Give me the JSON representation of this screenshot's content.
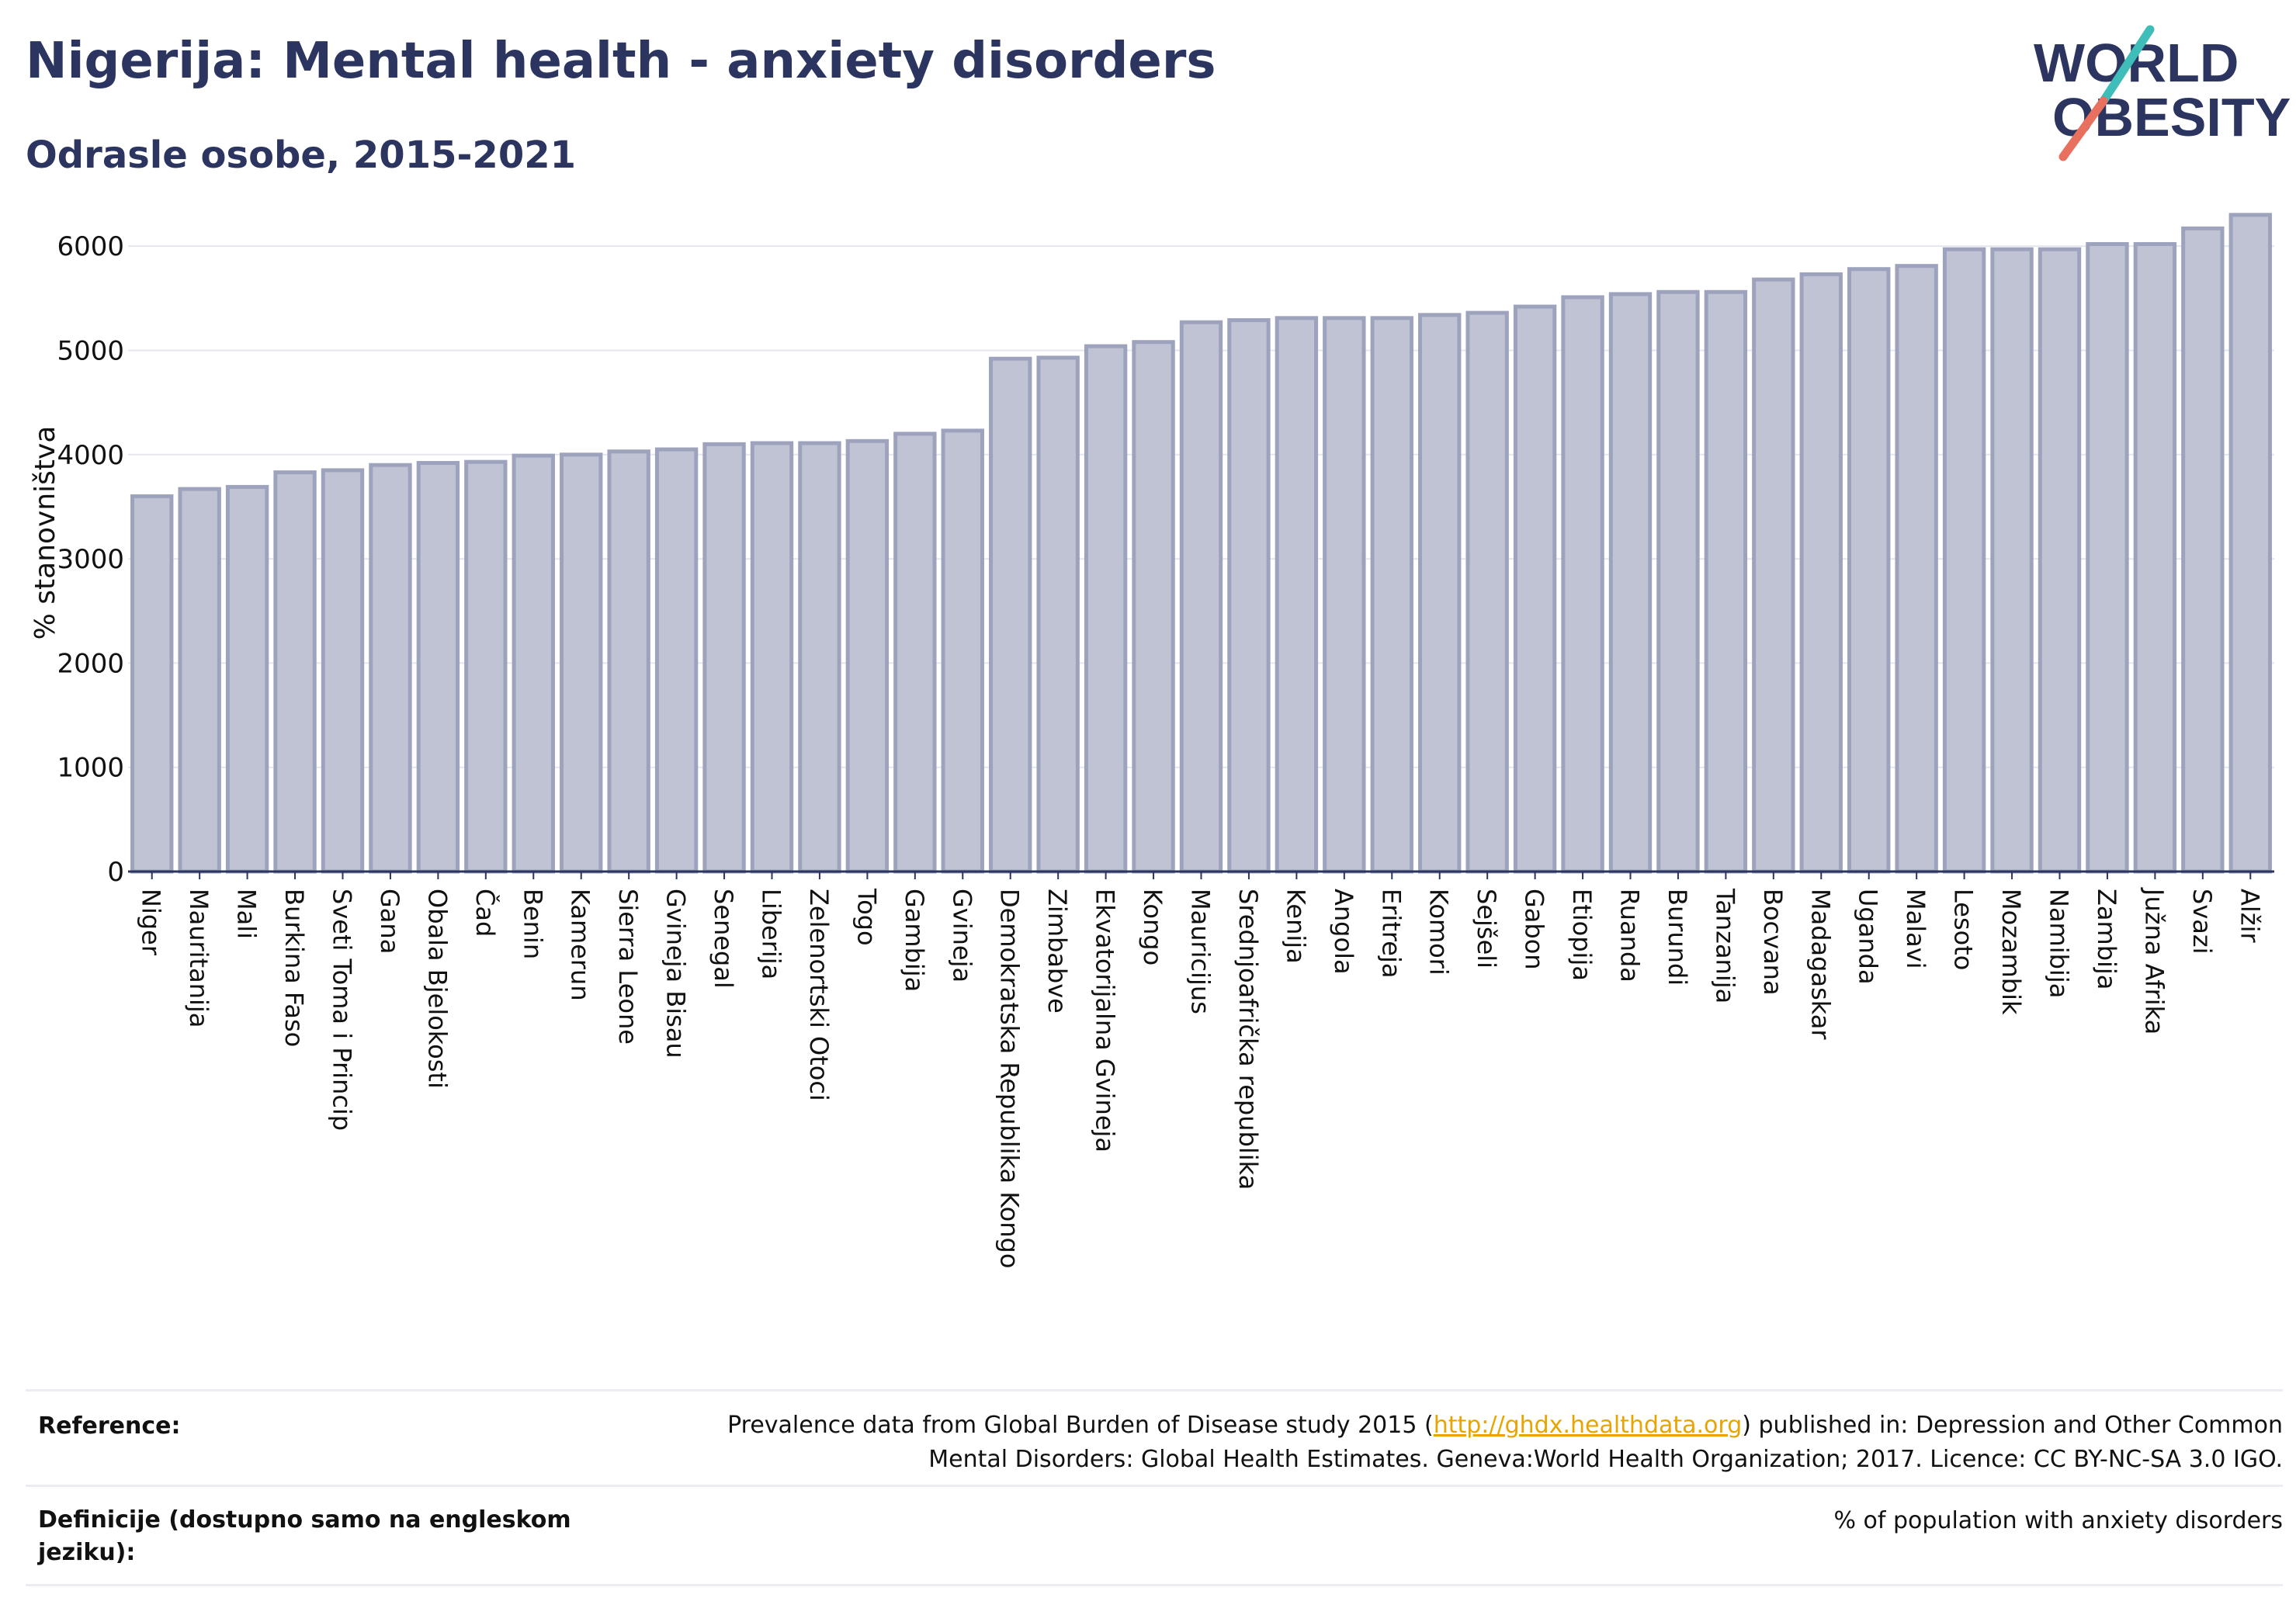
{
  "header": {
    "title": "Nigerija: Mental health - anxiety disorders",
    "subtitle": "Odrasle osobe, 2015-2021"
  },
  "logo": {
    "line1": "WORLD",
    "line2": "OBESITY",
    "colors": {
      "text": "#2b3560",
      "slash_top": "#3fbdb8",
      "slash_bottom": "#e8705e"
    }
  },
  "chart_data": {
    "type": "bar",
    "ylabel": "% stanovništva",
    "ylim": [
      0,
      6500
    ],
    "yticks": [
      0,
      1000,
      2000,
      3000,
      4000,
      5000,
      6000
    ],
    "grid": true,
    "bar_color": "#bfc3d3",
    "bar_edge_color": "#9ea3bd",
    "categories": [
      "Niger",
      "Mauritanija",
      "Mali",
      "Burkina Faso",
      "Sveti Toma i Princip",
      "Gana",
      "Obala Bjelokosti",
      "Čad",
      "Benin",
      "Kamerun",
      "Sierra Leone",
      "Gvineja Bisau",
      "Senegal",
      "Liberija",
      "Zelenortski Otoci",
      "Togo",
      "Gambija",
      "Gvineja",
      "Demokratska Republika Kongo",
      "Zimbabve",
      "Ekvatorijalna Gvineja",
      "Kongo",
      "Mauricijus",
      "Srednjoafrička republika",
      "Kenija",
      "Angola",
      "Eritreja",
      "Komori",
      "Sejšeli",
      "Gabon",
      "Etiopija",
      "Ruanda",
      "Burundi",
      "Tanzanija",
      "Bocvana",
      "Madagaskar",
      "Uganda",
      "Malavi",
      "Lesoto",
      "Mozambik",
      "Namibija",
      "Zambija",
      "Južna Afrika",
      "Svazi",
      "Alžir"
    ],
    "values": [
      3600,
      3670,
      3690,
      3830,
      3850,
      3900,
      3920,
      3930,
      3990,
      4000,
      4030,
      4050,
      4100,
      4110,
      4110,
      4130,
      4200,
      4230,
      4920,
      4930,
      5040,
      5080,
      5270,
      5290,
      5310,
      5310,
      5310,
      5340,
      5360,
      5420,
      5510,
      5540,
      5560,
      5560,
      5680,
      5730,
      5780,
      5810,
      5970,
      5970,
      5970,
      6020,
      6020,
      6170,
      6300
    ]
  },
  "footer": {
    "reference_label": "Reference:",
    "reference_text_before": "Prevalence data from Global Burden of Disease study 2015 (",
    "reference_link": "http://ghdx.healthdata.org",
    "reference_text_after": ") published in: Depression and Other Common",
    "reference_line2": "Mental Disorders: Global Health Estimates. Geneva:World Health Organization; 2017. Licence: CC BY-NC-SA 3.0 IGO.",
    "definition_label_line1": "Definicije (dostupno samo na engleskom",
    "definition_label_line2": "jeziku):",
    "definition_value": "% of population with anxiety disorders"
  }
}
